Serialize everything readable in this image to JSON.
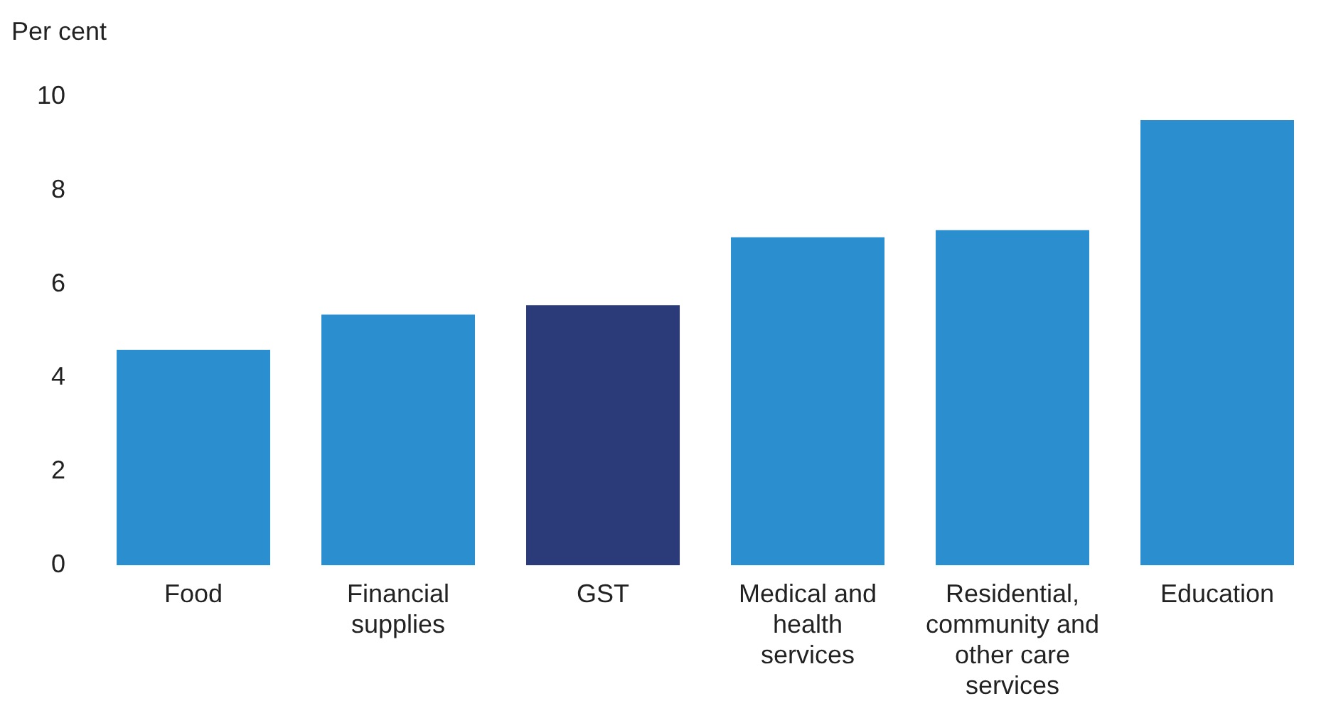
{
  "chart_data": {
    "type": "bar",
    "ylabel": "Per cent",
    "categories": [
      "Food",
      "Financial supplies",
      "GST",
      "Medical and health services",
      "Residential, community and other care services",
      "Education"
    ],
    "values": [
      4.6,
      5.35,
      5.55,
      7.0,
      7.15,
      9.5
    ],
    "colors": [
      "#2b8fcf",
      "#2b8fcf",
      "#2b3a78",
      "#2b8fcf",
      "#2b8fcf",
      "#2b8fcf"
    ],
    "ylim": [
      0,
      10
    ],
    "yticks": [
      0,
      2,
      4,
      6,
      8,
      10
    ],
    "grid": false,
    "legend": false
  }
}
